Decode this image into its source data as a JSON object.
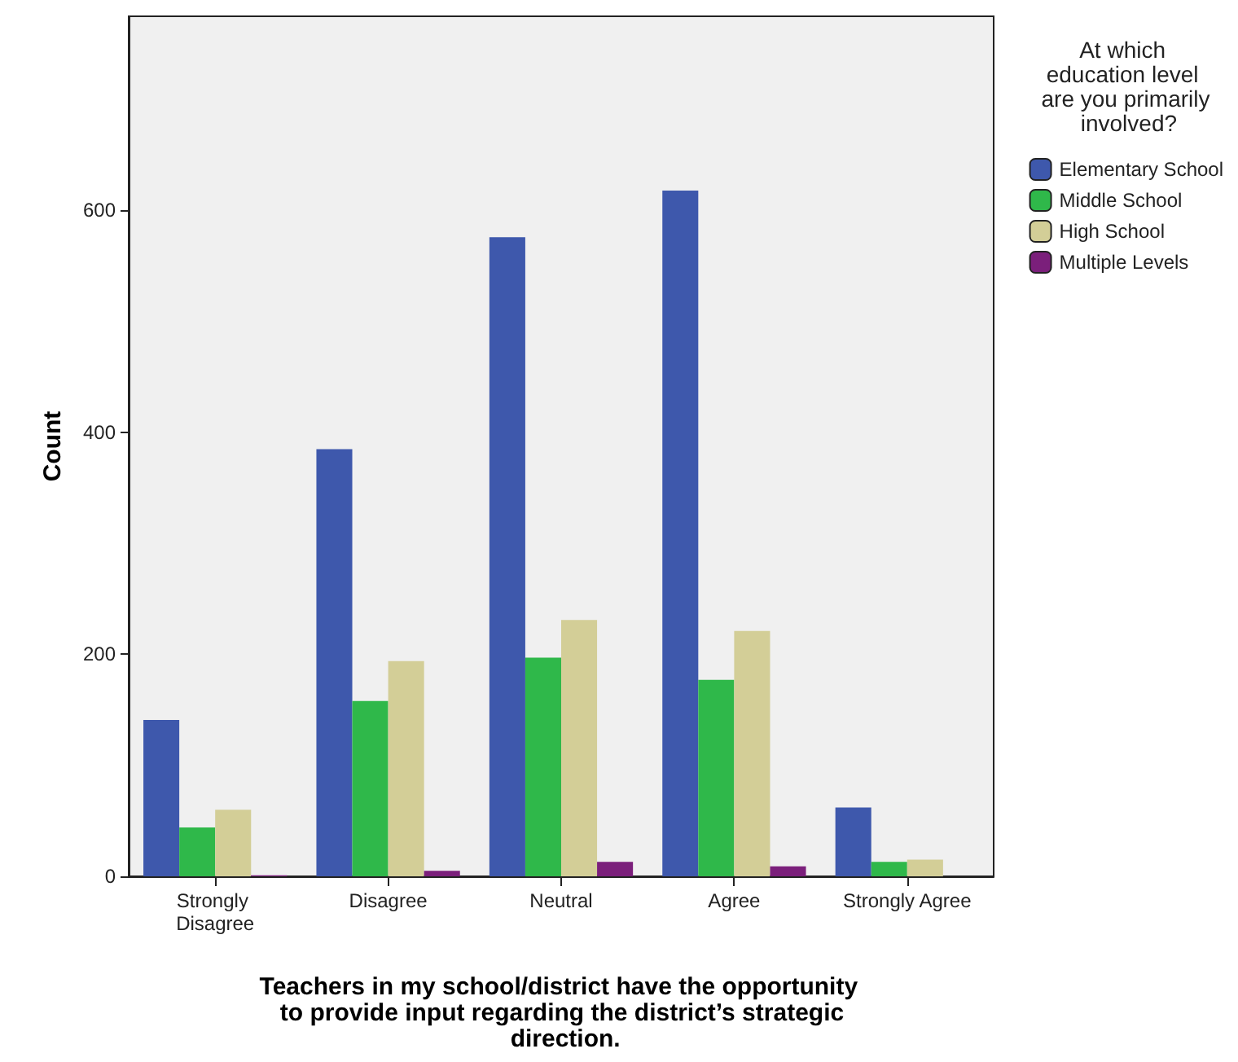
{
  "chart_data": {
    "type": "bar",
    "xlabel": "Teachers in my school/district have the opportunity to provide input regarding the district’s strategic direction.",
    "ylabel": "Count",
    "legend_title": "At which education level are you primarily involved?",
    "categories": [
      "Strongly Disagree",
      "Disagree",
      "Neutral",
      "Agree",
      "Strongly Agree"
    ],
    "series": [
      {
        "name": "Elementary School",
        "color": "#3e58ac",
        "values": [
          141,
          385,
          576,
          618,
          62
        ]
      },
      {
        "name": "Middle School",
        "color": "#2fb84a",
        "values": [
          44,
          158,
          197,
          177,
          13
        ]
      },
      {
        "name": "High School",
        "color": "#d3ce97",
        "values": [
          60,
          194,
          231,
          221,
          15
        ]
      },
      {
        "name": "Multiple Levels",
        "color": "#7b1f7b",
        "values": [
          1,
          5,
          13,
          9,
          0
        ]
      }
    ],
    "ylim": [
      0,
      775
    ],
    "yticks": [
      0,
      200,
      400,
      600
    ],
    "grid": false,
    "legend": "right"
  }
}
